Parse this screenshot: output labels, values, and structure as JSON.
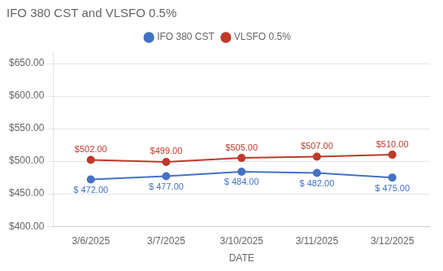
{
  "chart_data": {
    "type": "line",
    "title": "IFO 380 CST and VLSFO 0.5%",
    "xlabel": "DATE",
    "categories": [
      "3/6/2025",
      "3/7/2025",
      "3/10/2025",
      "3/11/2025",
      "3/12/2025"
    ],
    "series": [
      {
        "name": "IFO 380 CST",
        "color": "#4472C4",
        "marker": "circle",
        "values": [
          472,
          477,
          484,
          482,
          475
        ],
        "value_labels": [
          "$ 472.00",
          "$ 477.00",
          "$ 484.00",
          "$ 482.00",
          "$ 475.00"
        ]
      },
      {
        "name": "VLSFO 0.5%",
        "color": "#C0392B",
        "marker": "circle",
        "values": [
          502,
          499,
          505,
          507,
          510
        ],
        "value_labels": [
          "$502.00",
          "$499.00",
          "$505.00",
          "$507.00",
          "$510.00"
        ]
      }
    ],
    "ylim": [
      400,
      670
    ],
    "yticks": [
      {
        "value": 400,
        "label": "$400.00"
      },
      {
        "value": 450,
        "label": "$450.00"
      },
      {
        "value": 500,
        "label": "$500.00"
      },
      {
        "value": 550,
        "label": "$550.00"
      },
      {
        "value": 600,
        "label": "$600.00"
      },
      {
        "value": 650,
        "label": "$650.00"
      }
    ],
    "grid": true,
    "legend": "top"
  }
}
